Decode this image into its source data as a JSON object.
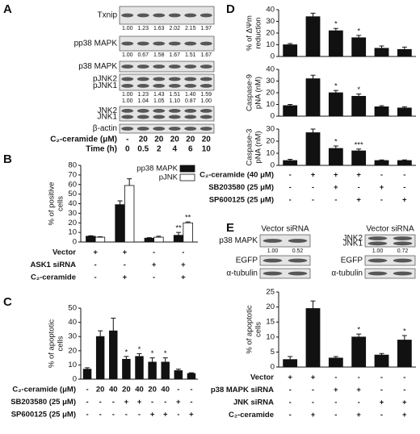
{
  "panel_labels": [
    "A",
    "B",
    "C",
    "D",
    "E"
  ],
  "blot_a": {
    "blots": [
      {
        "labels": [
          "Txnip"
        ],
        "quant": [
          [
            "1.00",
            "1.23",
            "1.63",
            "2.02",
            "2.15",
            "1.97"
          ]
        ]
      },
      {
        "labels": [
          "pp38 MAPK"
        ],
        "quant": [
          [
            "1.00",
            "0.67",
            "1.58",
            "1.67",
            "1.51",
            "1.67"
          ]
        ]
      },
      {
        "labels": [
          "p38 MAPK"
        ]
      },
      {
        "labels": [
          "pJNK2",
          "pJNK1"
        ],
        "quant": [
          [
            "1.00",
            "1.23",
            "1.43",
            "1.51",
            "1.40",
            "1.59"
          ],
          [
            "1.00",
            "1.04",
            "1.05",
            "1.10",
            "0.87",
            "1.00"
          ]
        ]
      },
      {
        "labels": [
          "JNK2",
          "JNK1"
        ]
      },
      {
        "labels": [
          "β-actin"
        ]
      }
    ],
    "treatments": [
      {
        "label": "C₂-ceramide (μM)",
        "values": [
          "-",
          "20",
          "20",
          "20",
          "20",
          "20"
        ]
      },
      {
        "label": "Time (h)",
        "values": [
          "0",
          "0.5",
          "2",
          "4",
          "6",
          "10"
        ]
      }
    ]
  },
  "blot_e": [
    {
      "headers": [
        "Vector",
        "siRNA"
      ],
      "blots": [
        {
          "labels": [
            "p38 MAPK"
          ],
          "quant": [
            [
              "1.00",
              "0.52"
            ]
          ]
        },
        {
          "labels": [
            "EGFP"
          ]
        },
        {
          "labels": [
            "α-tubulin"
          ]
        }
      ]
    },
    {
      "headers": [
        "Vector",
        "siRNA"
      ],
      "blots": [
        {
          "labels": [
            "JNK2",
            "JNK1"
          ],
          "quant": [
            [
              "1.00",
              "0.72"
            ]
          ]
        },
        {
          "labels": [
            "EGFP"
          ]
        },
        {
          "labels": [
            "α-tubulin"
          ]
        }
      ]
    }
  ],
  "chart_data": [
    {
      "type": "bar",
      "ylabel": [
        "% of positive",
        "cells"
      ],
      "ylim": [
        0,
        80
      ],
      "yticks": [
        0,
        10,
        20,
        30,
        40,
        50,
        60,
        70,
        80
      ],
      "series": [
        {
          "name": "pp38 MAPK",
          "color": "#111111",
          "values": [
            6,
            39,
            4,
            7
          ],
          "errors": [
            0.5,
            4,
            0.5,
            3
          ],
          "annotations": [
            null,
            null,
            null,
            "**"
          ]
        },
        {
          "name": "pJNK",
          "color": "#ffffff",
          "values": [
            5,
            59,
            5,
            20
          ],
          "errors": [
            0.5,
            7,
            1,
            1
          ],
          "annotations": [
            null,
            null,
            null,
            "**"
          ]
        }
      ],
      "conditions": [
        {
          "label": "Vector",
          "values": [
            "+",
            "+",
            "-",
            "-"
          ]
        },
        {
          "label": "ASK1 siRNA",
          "values": [
            "-",
            "-",
            "+",
            "+"
          ]
        },
        {
          "label": "C₂-ceramide",
          "values": [
            "-",
            "+",
            "-",
            "+"
          ]
        }
      ]
    },
    {
      "type": "bar",
      "ylabel": [
        "% of apoptotic",
        "cells"
      ],
      "ylim": [
        0,
        50
      ],
      "yticks": [
        0,
        10,
        20,
        30,
        40,
        50
      ],
      "series": [
        {
          "color": "#111111",
          "values": [
            7,
            30,
            34,
            14,
            16,
            12,
            12,
            6,
            4
          ],
          "errors": [
            1,
            4,
            9,
            2,
            2,
            3,
            3,
            1,
            0.5
          ],
          "annotations": [
            null,
            null,
            null,
            "*",
            "*",
            "*",
            "*",
            null,
            null
          ]
        }
      ],
      "conditions": [
        {
          "label": "C₂-ceramide (μM)",
          "values": [
            "-",
            "20",
            "40",
            "20",
            "40",
            "20",
            "40",
            "-",
            "-"
          ]
        },
        {
          "label": "SB203580 (25 μM)",
          "values": [
            "-",
            "-",
            "-",
            "+",
            "+",
            "-",
            "-",
            "+",
            "-"
          ]
        },
        {
          "label": "SP600125 (25 μM)",
          "values": [
            "-",
            "-",
            "-",
            "-",
            "-",
            "+",
            "+",
            "-",
            "+"
          ]
        }
      ]
    },
    {
      "type": "bar",
      "ylabel": [
        "% of ΔΨm",
        "reduction"
      ],
      "ylim": [
        0,
        40
      ],
      "yticks": [
        0,
        10,
        20,
        30,
        40
      ],
      "series": [
        {
          "color": "#111111",
          "values": [
            10,
            34,
            22,
            16,
            7,
            6
          ],
          "errors": [
            1,
            3,
            2,
            2,
            2,
            2
          ],
          "annotations": [
            null,
            null,
            "*",
            "*",
            null,
            null
          ]
        }
      ]
    },
    {
      "type": "bar",
      "ylabel": [
        "Caspase-9",
        "pNA (nM)"
      ],
      "ylim": [
        0,
        40
      ],
      "yticks": [
        0,
        10,
        20,
        30,
        40
      ],
      "series": [
        {
          "color": "#111111",
          "values": [
            9,
            32,
            20,
            17,
            8,
            7
          ],
          "errors": [
            1,
            3,
            2,
            2,
            1,
            1
          ],
          "annotations": [
            null,
            null,
            "*",
            "*",
            null,
            null
          ]
        }
      ]
    },
    {
      "type": "bar",
      "ylabel": [
        "Caspase-3",
        "pNA (nM)"
      ],
      "ylim": [
        0,
        30
      ],
      "yticks": [
        0,
        10,
        20,
        30
      ],
      "series": [
        {
          "color": "#111111",
          "values": [
            4,
            27,
            14,
            12,
            4,
            4
          ],
          "errors": [
            1,
            3,
            2,
            1.5,
            0.5,
            0.5
          ],
          "annotations": [
            null,
            null,
            "*",
            "***",
            null,
            null
          ]
        }
      ],
      "conditions": [
        {
          "label": "C₂-ceramide (40 μM)",
          "values": [
            "-",
            "+",
            "+",
            "+",
            "-",
            "-"
          ]
        },
        {
          "label": "SB203580 (25 μM)",
          "values": [
            "-",
            "-",
            "+",
            "-",
            "+",
            "-"
          ]
        },
        {
          "label": "SP600125 (25 μM)",
          "values": [
            "-",
            "-",
            "-",
            "+",
            "-",
            "+"
          ]
        }
      ]
    },
    {
      "type": "bar",
      "ylabel": [
        "% of apoptotic",
        "cells"
      ],
      "ylim": [
        0,
        25
      ],
      "yticks": [
        0,
        5,
        10,
        15,
        20,
        25
      ],
      "series": [
        {
          "color": "#111111",
          "values": [
            2.5,
            19.5,
            3,
            10,
            4,
            9
          ],
          "errors": [
            1,
            2.5,
            0.5,
            1,
            0.5,
            1.5
          ],
          "annotations": [
            null,
            null,
            null,
            "*",
            null,
            "*"
          ]
        }
      ],
      "conditions": [
        {
          "label": "Vector",
          "values": [
            "+",
            "+",
            "-",
            "-",
            "-",
            "-"
          ]
        },
        {
          "label": "p38 MAPK siRNA",
          "values": [
            "-",
            "-",
            "+",
            "+",
            "-",
            "-"
          ]
        },
        {
          "label": "JNK siRNA",
          "values": [
            "-",
            "-",
            "-",
            "-",
            "+",
            "+"
          ]
        },
        {
          "label": "C₂-ceramide",
          "values": [
            "-",
            "+",
            "-",
            "+",
            "-",
            "+"
          ]
        }
      ]
    }
  ]
}
